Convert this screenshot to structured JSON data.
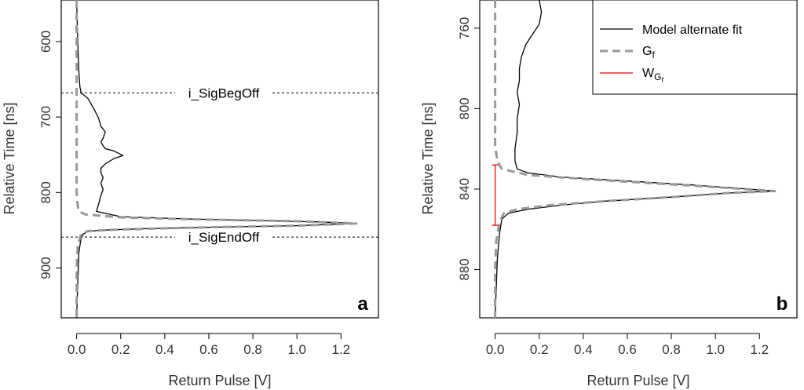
{
  "chart_data": [
    {
      "panel": "a",
      "type": "line",
      "xlabel": "Return Pulse [V]",
      "ylabel": "Relative Time [ns]",
      "xlim": [
        -0.07,
        1.37
      ],
      "ylim": [
        545,
        966
      ],
      "y_reversed": true,
      "x_ticks": [
        0.0,
        0.2,
        0.4,
        0.6,
        0.8,
        1.0,
        1.2
      ],
      "x_tick_labels": [
        "0.0",
        "0.2",
        "0.4",
        "0.6",
        "0.8",
        "1.0",
        "1.2"
      ],
      "y_ticks": [
        600,
        700,
        800,
        900
      ],
      "y_tick_labels": [
        "600",
        "700",
        "800",
        "900"
      ],
      "annotations": [
        {
          "text": "i_SigBegOff",
          "y": 668
        },
        {
          "text": "i_SigEndOff",
          "y": 859
        }
      ],
      "series": [
        {
          "style": "solid",
          "color": "#000000",
          "points": [
            [
              0.0,
              545
            ],
            [
              0.005,
              600
            ],
            [
              0.01,
              640
            ],
            [
              0.015,
              660
            ],
            [
              0.02,
              668
            ],
            [
              0.05,
              675
            ],
            [
              0.08,
              690
            ],
            [
              0.1,
              702
            ],
            [
              0.11,
              712
            ],
            [
              0.13,
              720
            ],
            [
              0.12,
              728
            ],
            [
              0.11,
              733
            ],
            [
              0.12,
              738
            ],
            [
              0.13,
              742
            ],
            [
              0.17,
              745
            ],
            [
              0.21,
              751
            ],
            [
              0.17,
              755
            ],
            [
              0.13,
              762
            ],
            [
              0.11,
              768
            ],
            [
              0.11,
              774
            ],
            [
              0.12,
              780
            ],
            [
              0.11,
              788
            ],
            [
              0.12,
              796
            ],
            [
              0.11,
              804
            ],
            [
              0.1,
              815
            ],
            [
              0.09,
              825
            ],
            [
              0.2,
              832
            ],
            [
              0.5,
              835
            ],
            [
              0.8,
              837
            ],
            [
              1.1,
              839
            ],
            [
              1.27,
              841
            ],
            [
              1.0,
              844
            ],
            [
              0.6,
              846
            ],
            [
              0.3,
              848
            ],
            [
              0.1,
              850
            ],
            [
              0.05,
              852
            ],
            [
              0.03,
              855
            ],
            [
              0.02,
              860
            ],
            [
              0.01,
              880
            ],
            [
              0.005,
              920
            ],
            [
              0.0,
              966
            ]
          ]
        },
        {
          "style": "dashed",
          "color": "#999999",
          "points": [
            [
              0.0,
              545
            ],
            [
              0.0,
              700
            ],
            [
              0.0,
              800
            ],
            [
              0.005,
              818
            ],
            [
              0.01,
              825
            ],
            [
              0.04,
              829
            ],
            [
              0.2,
              833
            ],
            [
              0.6,
              836
            ],
            [
              1.0,
              838
            ],
            [
              1.27,
              841
            ],
            [
              1.0,
              844
            ],
            [
              0.6,
              846
            ],
            [
              0.2,
              849
            ],
            [
              0.05,
              851
            ],
            [
              0.02,
              855
            ],
            [
              0.005,
              870
            ],
            [
              0.0,
              900
            ],
            [
              0.0,
              966
            ]
          ]
        }
      ]
    },
    {
      "panel": "b",
      "type": "line",
      "xlabel": "Return Pulse [V]",
      "ylabel": "Relative Time [ns]",
      "xlim": [
        -0.07,
        1.37
      ],
      "ylim": [
        746,
        904
      ],
      "y_reversed": true,
      "x_ticks": [
        0.0,
        0.2,
        0.4,
        0.6,
        0.8,
        1.0,
        1.2
      ],
      "x_tick_labels": [
        "0.0",
        "0.2",
        "0.4",
        "0.6",
        "0.8",
        "1.0",
        "1.2"
      ],
      "y_ticks": [
        760,
        800,
        840,
        880
      ],
      "y_tick_labels": [
        "760",
        "800",
        "840",
        "880"
      ],
      "legend": {
        "placement": "top-right",
        "entries": [
          {
            "label": "Model alternate fit",
            "style": "solid",
            "color": "#000000"
          },
          {
            "label": "G",
            "sub": "f",
            "style": "dashed",
            "color": "#999999"
          },
          {
            "label": "W",
            "sub": "G",
            "subsub": "f",
            "style": "solid",
            "color": "#ff0000"
          }
        ]
      },
      "width_marker": {
        "x": 0.0,
        "y_from": 828,
        "y_to": 858,
        "color": "#ff0000"
      },
      "series": [
        {
          "style": "solid",
          "color": "#000000",
          "points": [
            [
              0.2,
              746
            ],
            [
              0.21,
              752
            ],
            [
              0.2,
              758
            ],
            [
              0.17,
              763
            ],
            [
              0.14,
              768
            ],
            [
              0.12,
              774
            ],
            [
              0.11,
              780
            ],
            [
              0.11,
              786
            ],
            [
              0.1,
              792
            ],
            [
              0.11,
              798
            ],
            [
              0.1,
              805
            ],
            [
              0.1,
              812
            ],
            [
              0.09,
              820
            ],
            [
              0.09,
              826
            ],
            [
              0.1,
              830
            ],
            [
              0.15,
              832
            ],
            [
              0.3,
              834
            ],
            [
              0.6,
              836
            ],
            [
              0.9,
              838
            ],
            [
              1.27,
              841
            ],
            [
              1.05,
              842
            ],
            [
              0.8,
              844
            ],
            [
              0.5,
              846
            ],
            [
              0.3,
              848
            ],
            [
              0.15,
              850
            ],
            [
              0.06,
              852
            ],
            [
              0.03,
              855
            ],
            [
              0.02,
              862
            ],
            [
              0.01,
              875
            ],
            [
              0.0,
              904
            ]
          ]
        },
        {
          "style": "dashed",
          "color": "#999999",
          "points": [
            [
              0.0,
              746
            ],
            [
              0.0,
              800
            ],
            [
              0.0,
              818
            ],
            [
              0.01,
              826
            ],
            [
              0.03,
              830
            ],
            [
              0.15,
              833
            ],
            [
              0.4,
              835
            ],
            [
              0.7,
              837
            ],
            [
              1.0,
              839
            ],
            [
              1.27,
              841
            ],
            [
              1.05,
              842
            ],
            [
              0.8,
              844
            ],
            [
              0.5,
              846
            ],
            [
              0.25,
              848
            ],
            [
              0.1,
              850
            ],
            [
              0.04,
              852
            ],
            [
              0.02,
              856
            ],
            [
              0.005,
              866
            ],
            [
              0.0,
              880
            ],
            [
              0.0,
              904
            ]
          ]
        }
      ]
    }
  ]
}
